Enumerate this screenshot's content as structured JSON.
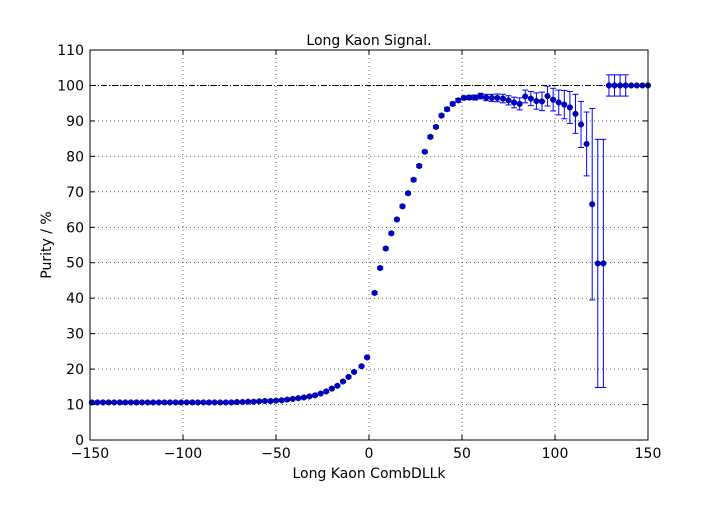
{
  "chart_data": {
    "type": "scatter",
    "title": "Long Kaon Signal.",
    "xlabel": "Long Kaon CombDLLk",
    "ylabel": "Purity / %",
    "xlim": [
      -150,
      150
    ],
    "ylim": [
      0,
      110
    ],
    "xticks": [
      -150,
      -100,
      -50,
      0,
      50,
      100,
      150
    ],
    "yticks": [
      0,
      10,
      20,
      30,
      40,
      50,
      60,
      70,
      80,
      90,
      100,
      110
    ],
    "grid": true,
    "reference_line": 100,
    "series_color": "#0000cc",
    "errorbar_color": "#0000ff",
    "points": [
      {
        "x": -149,
        "y": 10.6,
        "err": 0.3
      },
      {
        "x": -146,
        "y": 10.6,
        "err": 0.3
      },
      {
        "x": -143,
        "y": 10.6,
        "err": 0.3
      },
      {
        "x": -140,
        "y": 10.6,
        "err": 0.3
      },
      {
        "x": -137,
        "y": 10.6,
        "err": 0.3
      },
      {
        "x": -134,
        "y": 10.6,
        "err": 0.3
      },
      {
        "x": -131,
        "y": 10.6,
        "err": 0.3
      },
      {
        "x": -128,
        "y": 10.6,
        "err": 0.3
      },
      {
        "x": -125,
        "y": 10.6,
        "err": 0.3
      },
      {
        "x": -122,
        "y": 10.6,
        "err": 0.3
      },
      {
        "x": -119,
        "y": 10.6,
        "err": 0.3
      },
      {
        "x": -116,
        "y": 10.6,
        "err": 0.3
      },
      {
        "x": -113,
        "y": 10.6,
        "err": 0.3
      },
      {
        "x": -110,
        "y": 10.6,
        "err": 0.3
      },
      {
        "x": -107,
        "y": 10.6,
        "err": 0.3
      },
      {
        "x": -104,
        "y": 10.6,
        "err": 0.3
      },
      {
        "x": -101,
        "y": 10.6,
        "err": 0.3
      },
      {
        "x": -98,
        "y": 10.6,
        "err": 0.3
      },
      {
        "x": -95,
        "y": 10.6,
        "err": 0.3
      },
      {
        "x": -92,
        "y": 10.6,
        "err": 0.3
      },
      {
        "x": -89,
        "y": 10.6,
        "err": 0.3
      },
      {
        "x": -86,
        "y": 10.6,
        "err": 0.3
      },
      {
        "x": -83,
        "y": 10.6,
        "err": 0.3
      },
      {
        "x": -80,
        "y": 10.6,
        "err": 0.3
      },
      {
        "x": -77,
        "y": 10.6,
        "err": 0.3
      },
      {
        "x": -74,
        "y": 10.6,
        "err": 0.3
      },
      {
        "x": -71,
        "y": 10.7,
        "err": 0.3
      },
      {
        "x": -68,
        "y": 10.7,
        "err": 0.3
      },
      {
        "x": -65,
        "y": 10.8,
        "err": 0.3
      },
      {
        "x": -62,
        "y": 10.8,
        "err": 0.3
      },
      {
        "x": -59,
        "y": 10.9,
        "err": 0.3
      },
      {
        "x": -56,
        "y": 11.0,
        "err": 0.3
      },
      {
        "x": -53,
        "y": 11.0,
        "err": 0.3
      },
      {
        "x": -50,
        "y": 11.1,
        "err": 0.3
      },
      {
        "x": -47,
        "y": 11.2,
        "err": 0.3
      },
      {
        "x": -44,
        "y": 11.4,
        "err": 0.3
      },
      {
        "x": -41,
        "y": 11.6,
        "err": 0.3
      },
      {
        "x": -38,
        "y": 11.8,
        "err": 0.3
      },
      {
        "x": -35,
        "y": 12.0,
        "err": 0.3
      },
      {
        "x": -32,
        "y": 12.3,
        "err": 0.3
      },
      {
        "x": -29,
        "y": 12.6,
        "err": 0.3
      },
      {
        "x": -26,
        "y": 13.1,
        "err": 0.3
      },
      {
        "x": -23,
        "y": 13.7,
        "err": 0.3
      },
      {
        "x": -20,
        "y": 14.5,
        "err": 0.3
      },
      {
        "x": -17,
        "y": 15.3,
        "err": 0.3
      },
      {
        "x": -14,
        "y": 16.5,
        "err": 0.3
      },
      {
        "x": -11,
        "y": 17.8,
        "err": 0.3
      },
      {
        "x": -8,
        "y": 19.2,
        "err": 0.3
      },
      {
        "x": -4,
        "y": 20.8,
        "err": 0.3
      },
      {
        "x": -1,
        "y": 23.3,
        "err": 0.4
      },
      {
        "x": 3,
        "y": 41.5,
        "err": 0.4
      },
      {
        "x": 6,
        "y": 48.5,
        "err": 0.4
      },
      {
        "x": 9,
        "y": 54.0,
        "err": 0.4
      },
      {
        "x": 12,
        "y": 58.3,
        "err": 0.4
      },
      {
        "x": 15,
        "y": 62.2,
        "err": 0.4
      },
      {
        "x": 18,
        "y": 65.9,
        "err": 0.4
      },
      {
        "x": 21,
        "y": 69.6,
        "err": 0.4
      },
      {
        "x": 24,
        "y": 73.4,
        "err": 0.4
      },
      {
        "x": 27,
        "y": 77.3,
        "err": 0.4
      },
      {
        "x": 30,
        "y": 81.3,
        "err": 0.4
      },
      {
        "x": 33,
        "y": 85.5,
        "err": 0.4
      },
      {
        "x": 36,
        "y": 88.3,
        "err": 0.4
      },
      {
        "x": 39,
        "y": 91.5,
        "err": 0.4
      },
      {
        "x": 42,
        "y": 93.3,
        "err": 0.5
      },
      {
        "x": 45,
        "y": 94.8,
        "err": 0.5
      },
      {
        "x": 48,
        "y": 95.8,
        "err": 0.5
      },
      {
        "x": 51,
        "y": 96.5,
        "err": 0.5
      },
      {
        "x": 54,
        "y": 96.6,
        "err": 0.6
      },
      {
        "x": 57,
        "y": 96.6,
        "err": 0.7
      },
      {
        "x": 60,
        "y": 97.0,
        "err": 0.8
      },
      {
        "x": 63,
        "y": 96.6,
        "err": 0.9
      },
      {
        "x": 66,
        "y": 96.5,
        "err": 1.0
      },
      {
        "x": 69,
        "y": 96.5,
        "err": 1.1
      },
      {
        "x": 72,
        "y": 96.3,
        "err": 1.2
      },
      {
        "x": 75,
        "y": 95.8,
        "err": 1.3
      },
      {
        "x": 78,
        "y": 95.2,
        "err": 1.5
      },
      {
        "x": 81,
        "y": 94.8,
        "err": 1.7
      },
      {
        "x": 84,
        "y": 96.9,
        "err": 1.8
      },
      {
        "x": 87,
        "y": 96.3,
        "err": 2.0
      },
      {
        "x": 90,
        "y": 95.6,
        "err": 2.3
      },
      {
        "x": 93,
        "y": 95.5,
        "err": 2.6
      },
      {
        "x": 96,
        "y": 97.0,
        "err": 2.8
      },
      {
        "x": 99,
        "y": 96.0,
        "err": 3.2
      },
      {
        "x": 102,
        "y": 95.2,
        "err": 3.5
      },
      {
        "x": 105,
        "y": 94.6,
        "err": 4.0
      },
      {
        "x": 108,
        "y": 93.8,
        "err": 4.5
      },
      {
        "x": 111,
        "y": 92.0,
        "err": 5.5
      },
      {
        "x": 114,
        "y": 89.0,
        "err": 6.5
      },
      {
        "x": 117,
        "y": 83.5,
        "err": 9.0
      },
      {
        "x": 120,
        "y": 66.5,
        "err": 27.0
      },
      {
        "x": 123,
        "y": 49.8,
        "err": 35.0
      },
      {
        "x": 126,
        "y": 49.8,
        "err": 35.0
      },
      {
        "x": 129,
        "y": 100.0,
        "err": 3.0
      },
      {
        "x": 132,
        "y": 100.0,
        "err": 3.0
      },
      {
        "x": 135,
        "y": 100.0,
        "err": 3.0
      },
      {
        "x": 138,
        "y": 100.0,
        "err": 3.0
      },
      {
        "x": 141,
        "y": 100.0,
        "err": 0
      },
      {
        "x": 144,
        "y": 100.0,
        "err": 0
      },
      {
        "x": 147,
        "y": 100.0,
        "err": 0
      },
      {
        "x": 150,
        "y": 100.0,
        "err": 0
      }
    ]
  }
}
